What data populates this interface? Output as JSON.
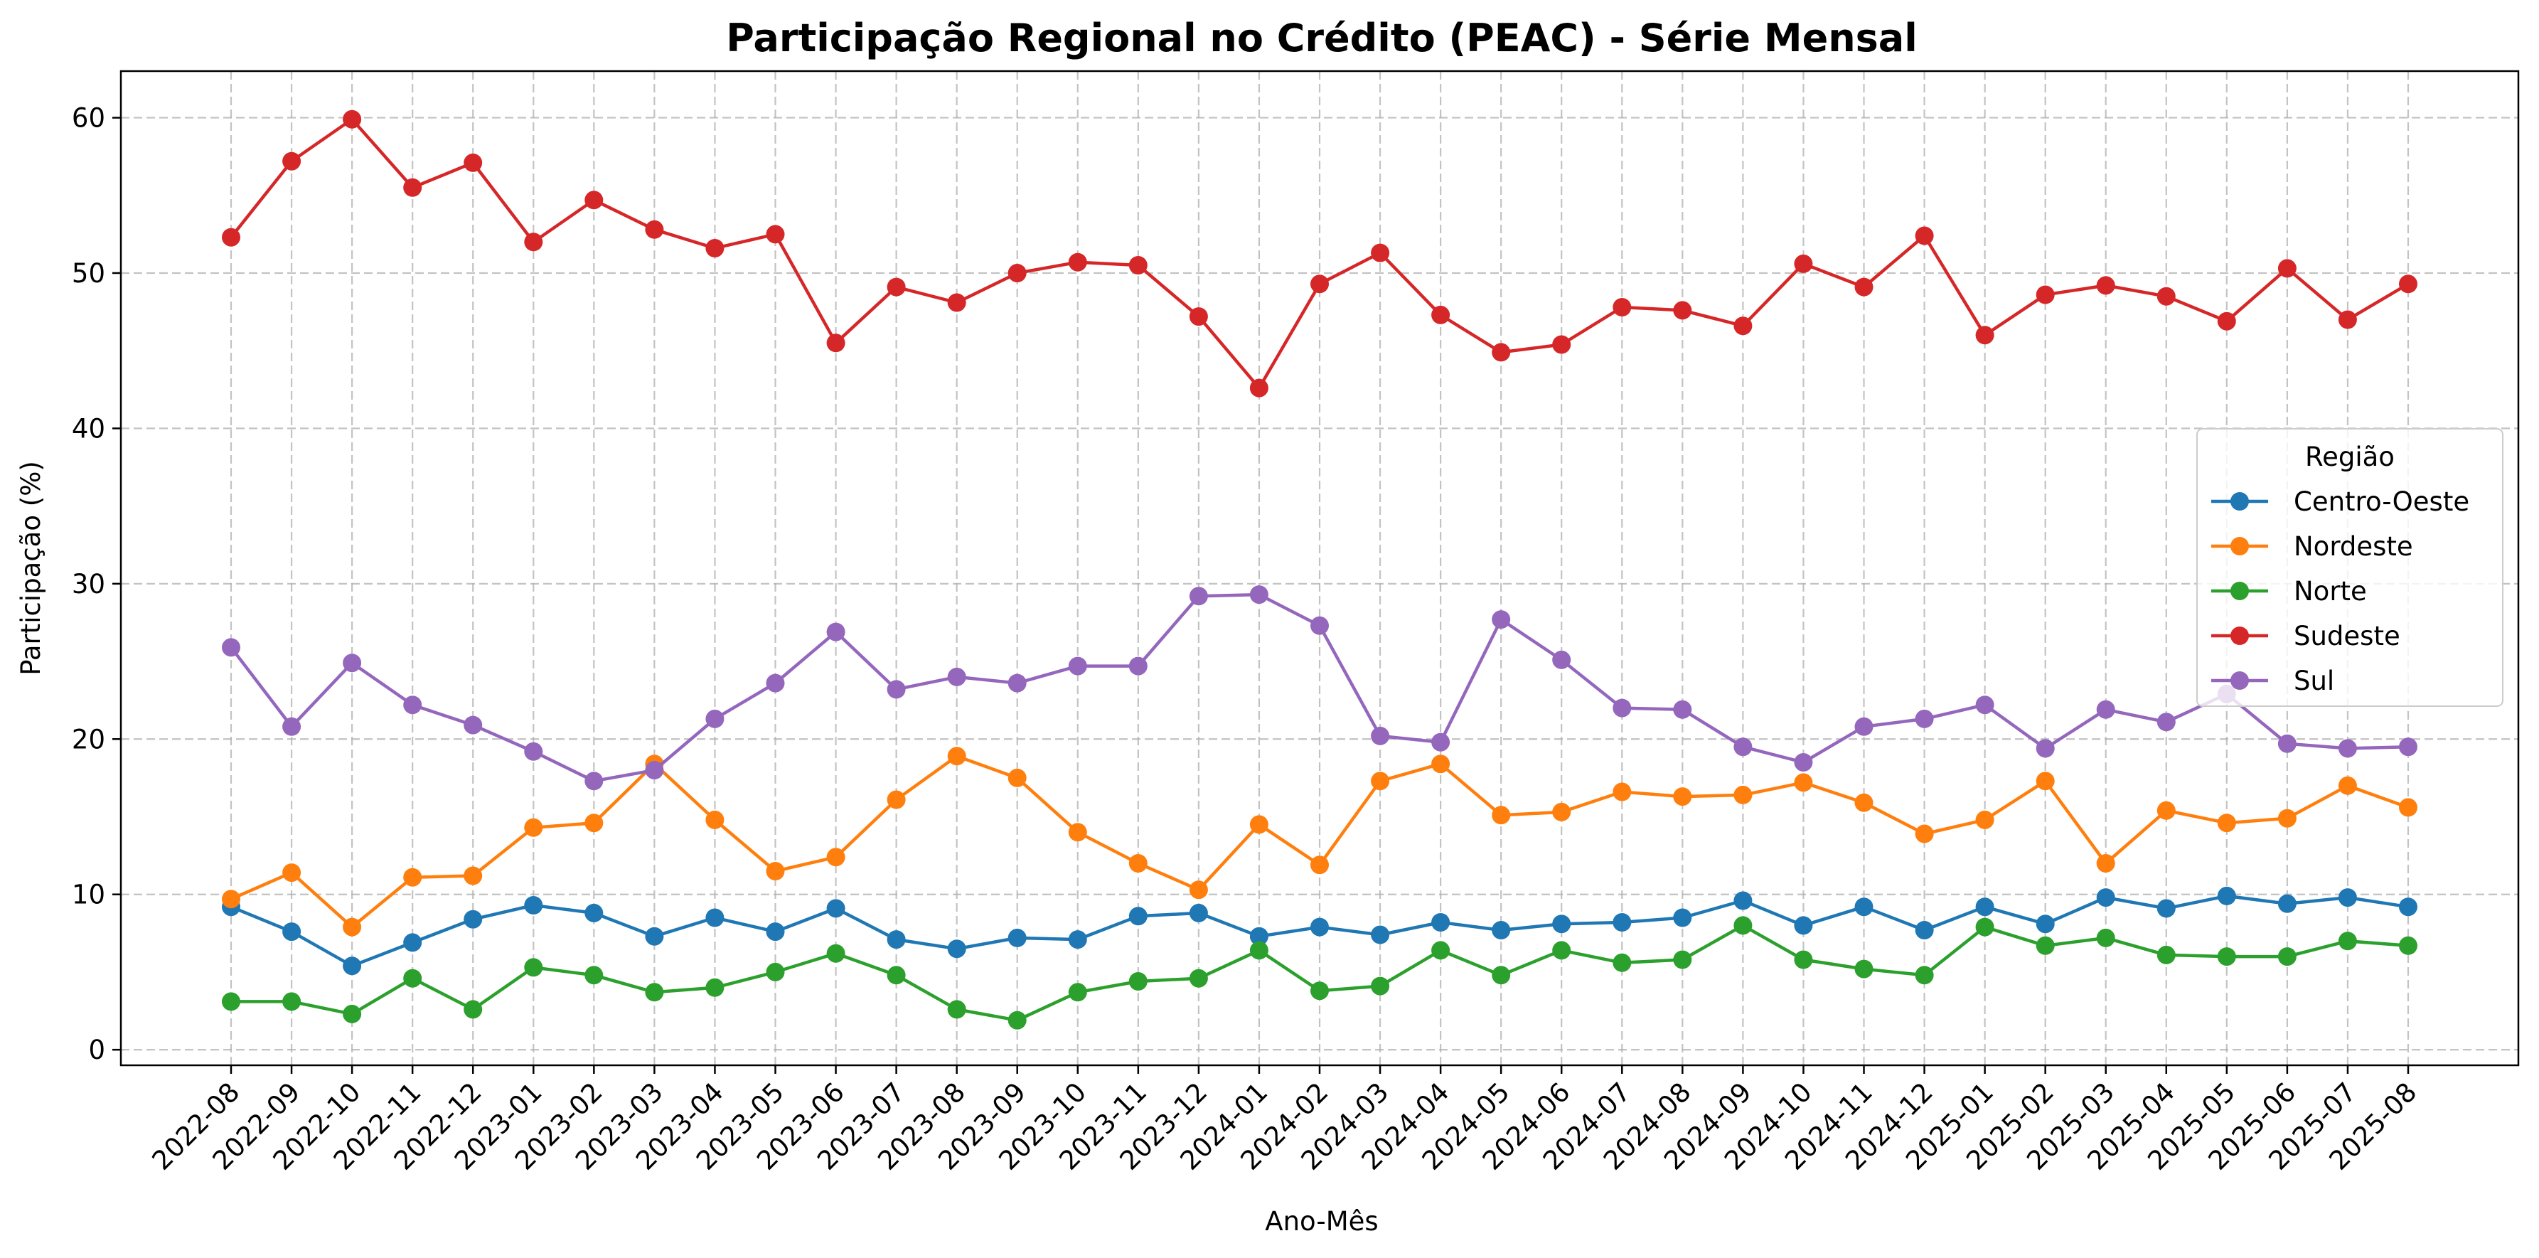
{
  "chart_data": {
    "type": "line",
    "title": "Participação Regional no Crédito (PEAC) - Série Mensal",
    "xlabel": "Ano-Mês",
    "ylabel": "Participação (%)",
    "ylim": [
      -1,
      63
    ],
    "yticks": [
      0,
      10,
      20,
      30,
      40,
      50,
      60
    ],
    "grid": true,
    "legend_title": "Região",
    "legend_placement": "center-right",
    "categories": [
      "2022-08",
      "2022-09",
      "2022-10",
      "2022-11",
      "2022-12",
      "2023-01",
      "2023-02",
      "2023-03",
      "2023-04",
      "2023-05",
      "2023-06",
      "2023-07",
      "2023-08",
      "2023-09",
      "2023-10",
      "2023-11",
      "2023-12",
      "2024-01",
      "2024-02",
      "2024-03",
      "2024-04",
      "2024-05",
      "2024-06",
      "2024-07",
      "2024-08",
      "2024-09",
      "2024-10",
      "2024-11",
      "2024-12",
      "2025-01",
      "2025-02",
      "2025-03",
      "2025-04",
      "2025-05",
      "2025-06",
      "2025-07",
      "2025-08"
    ],
    "series": [
      {
        "name": "Centro-Oeste",
        "color": "#1f77b4",
        "values": [
          9.2,
          7.6,
          5.4,
          6.9,
          8.4,
          9.3,
          8.8,
          7.3,
          8.5,
          7.6,
          9.1,
          7.1,
          6.5,
          7.2,
          7.1,
          8.6,
          8.8,
          7.3,
          7.9,
          7.4,
          8.2,
          7.7,
          8.1,
          8.2,
          8.5,
          9.6,
          8.0,
          9.2,
          7.7,
          9.2,
          8.1,
          9.8,
          9.1,
          9.9,
          9.4,
          9.8,
          9.2
        ]
      },
      {
        "name": "Nordeste",
        "color": "#ff7f0e",
        "values": [
          9.7,
          11.4,
          7.9,
          11.1,
          11.2,
          14.3,
          14.6,
          18.4,
          14.8,
          11.5,
          12.4,
          16.1,
          18.9,
          17.5,
          14.0,
          12.0,
          10.3,
          14.5,
          11.9,
          17.3,
          18.4,
          15.1,
          15.3,
          16.6,
          16.3,
          16.4,
          17.2,
          15.9,
          13.9,
          14.8,
          17.3,
          12.0,
          15.4,
          14.6,
          14.9,
          17.0,
          15.6
        ]
      },
      {
        "name": "Norte",
        "color": "#2ca02c",
        "values": [
          3.1,
          3.1,
          2.3,
          4.6,
          2.6,
          5.3,
          4.8,
          3.7,
          4.0,
          5.0,
          6.2,
          4.8,
          2.6,
          1.9,
          3.7,
          4.4,
          4.6,
          6.4,
          3.8,
          4.1,
          6.4,
          4.8,
          6.4,
          5.6,
          5.8,
          8.0,
          5.8,
          5.2,
          4.8,
          7.9,
          6.7,
          7.2,
          6.1,
          6.0,
          6.0,
          7.0,
          6.7
        ]
      },
      {
        "name": "Sudeste",
        "color": "#d62728",
        "values": [
          52.3,
          57.2,
          59.9,
          55.5,
          57.1,
          52.0,
          54.7,
          52.8,
          51.6,
          52.5,
          45.5,
          49.1,
          48.1,
          50.0,
          50.7,
          50.5,
          47.2,
          42.6,
          49.3,
          51.3,
          47.3,
          44.9,
          45.4,
          47.8,
          47.6,
          46.6,
          50.6,
          49.1,
          52.4,
          46.0,
          48.6,
          49.2,
          48.5,
          46.9,
          50.3,
          47.0,
          49.3
        ]
      },
      {
        "name": "Sul",
        "color": "#9467bd",
        "values": [
          25.9,
          20.8,
          24.9,
          22.2,
          20.9,
          19.2,
          17.3,
          18.0,
          21.3,
          23.6,
          26.9,
          23.2,
          24.0,
          23.6,
          24.7,
          24.7,
          29.2,
          29.3,
          27.3,
          20.2,
          19.8,
          27.7,
          25.1,
          22.0,
          21.9,
          19.5,
          18.5,
          20.8,
          21.3,
          22.2,
          19.4,
          21.9,
          21.1,
          22.9,
          19.7,
          19.4,
          19.5
        ]
      }
    ]
  }
}
